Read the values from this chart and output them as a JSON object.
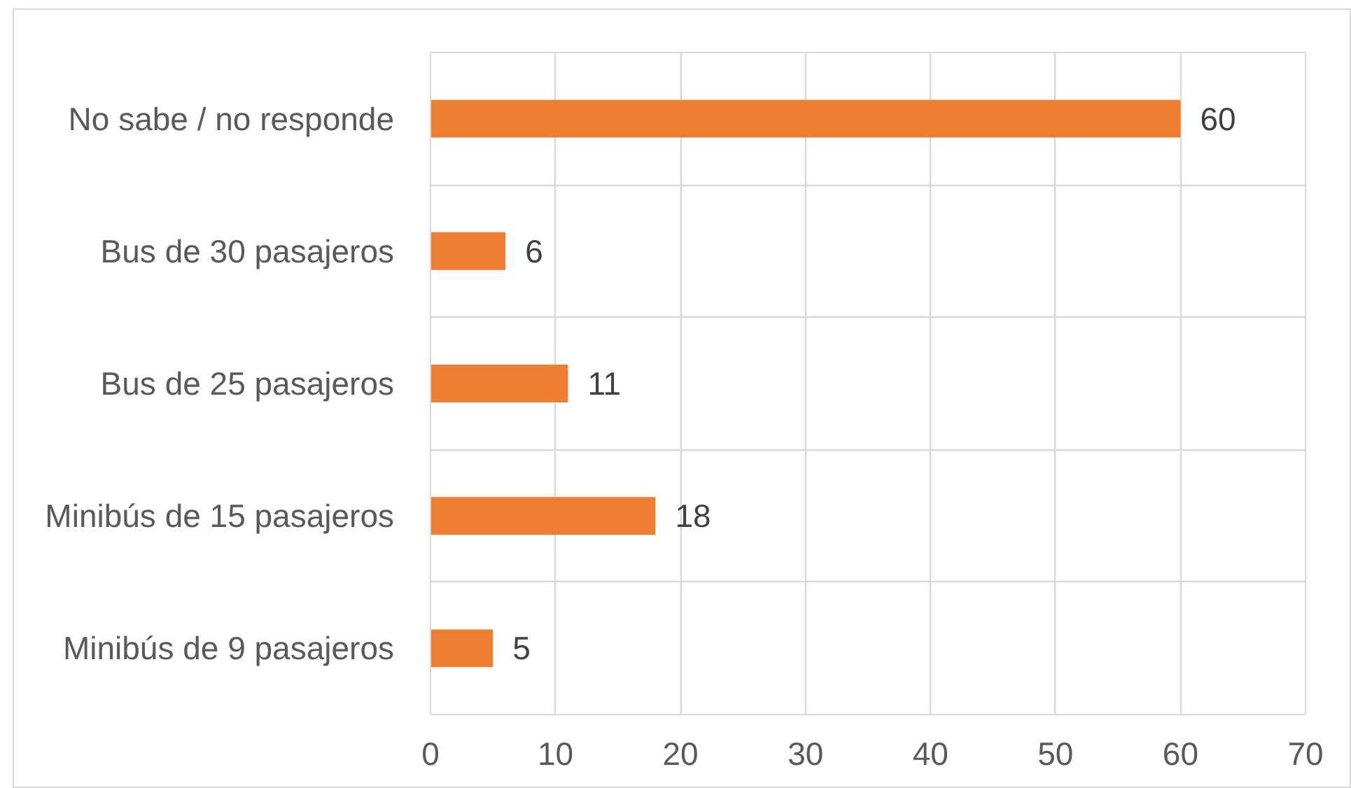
{
  "chart_data": {
    "type": "bar",
    "orientation": "horizontal",
    "categories": [
      "No sabe / no responde",
      "Bus de 30 pasajeros",
      "Bus de 25 pasajeros",
      "Minibús de 15 pasajeros",
      "Minibús de 9 pasajeros"
    ],
    "values": [
      60,
      6,
      11,
      18,
      5
    ],
    "color": "#ed7d31",
    "xlim": [
      0,
      70
    ],
    "xticks": [
      0,
      10,
      20,
      30,
      40,
      50,
      60,
      70
    ],
    "grid": true,
    "data_labels": true
  }
}
